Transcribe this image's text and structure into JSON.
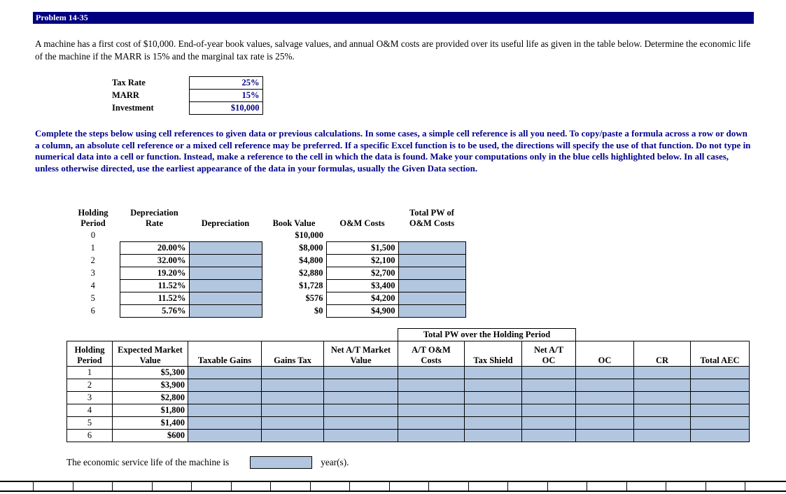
{
  "colors": {
    "title_bg": "#000080",
    "navy_text": "#00008B",
    "input_cell_fill": "#B3C6E0"
  },
  "title": "Problem 14-35",
  "intro": "A machine has a first cost of $10,000. End-of-year book values, salvage values, and annual O&M costs are provided over its useful life as given in the table below. Determine the economic life of the machine if the MARR is 15% and the marginal tax rate is 25%.",
  "given": [
    {
      "label": "Tax Rate",
      "value": "25%"
    },
    {
      "label": "MARR",
      "value": "15%"
    },
    {
      "label": "Investment",
      "value": "$10,000"
    }
  ],
  "instructions": "Complete the steps below using cell references to given data or previous calculations. In some cases, a simple cell reference is all you need. To copy/paste a formula across a row or down a column, an absolute cell reference or a mixed cell reference may be preferred. If a specific Excel function is to be used, the directions will specify the use of that function. Do not type in numerical data into a cell or function. Instead, make a reference to the cell in which the data is found. Make your computations only in the blue cells highlighted below. In all cases, unless otherwise directed, use the earliest appearance of the data in your formulas, usually the Given Data section.",
  "dep_table": {
    "headers": {
      "period": "Holding\nPeriod",
      "rate": "Depreciation\nRate",
      "depreciation": "Depreciation",
      "book": "Book Value",
      "om": "O&M Costs",
      "pw": "Total PW of\nO&M Costs"
    },
    "rows": [
      {
        "period": "0",
        "rate": "",
        "book": "$10,000",
        "om": ""
      },
      {
        "period": "1",
        "rate": "20.00%",
        "book": "$8,000",
        "om": "$1,500"
      },
      {
        "period": "2",
        "rate": "32.00%",
        "book": "$4,800",
        "om": "$2,100"
      },
      {
        "period": "3",
        "rate": "19.20%",
        "book": "$2,880",
        "om": "$2,700"
      },
      {
        "period": "4",
        "rate": "11.52%",
        "book": "$1,728",
        "om": "$3,400"
      },
      {
        "period": "5",
        "rate": "11.52%",
        "book": "$576",
        "om": "$4,200"
      },
      {
        "period": "6",
        "rate": "5.76%",
        "book": "$0",
        "om": "$4,900"
      }
    ]
  },
  "aec_table": {
    "span_header": "Total PW over the Holding Period",
    "headers": [
      "Holding\nPeriod",
      "Expected Market\nValue",
      "Taxable Gains",
      "Gains Tax",
      "Net A/T Market\nValue",
      "A/T O&M\nCosts",
      "Tax Shield",
      "Net A/T\nOC",
      "OC",
      "CR",
      "Total AEC"
    ],
    "rows": [
      {
        "period": "1",
        "market": "$5,300"
      },
      {
        "period": "2",
        "market": "$3,900"
      },
      {
        "period": "3",
        "market": "$2,800"
      },
      {
        "period": "4",
        "market": "$1,800"
      },
      {
        "period": "5",
        "market": "$1,400"
      },
      {
        "period": "6",
        "market": "$600"
      }
    ]
  },
  "footer": {
    "before": "The economic service life of the machine is",
    "after": "year(s)."
  }
}
